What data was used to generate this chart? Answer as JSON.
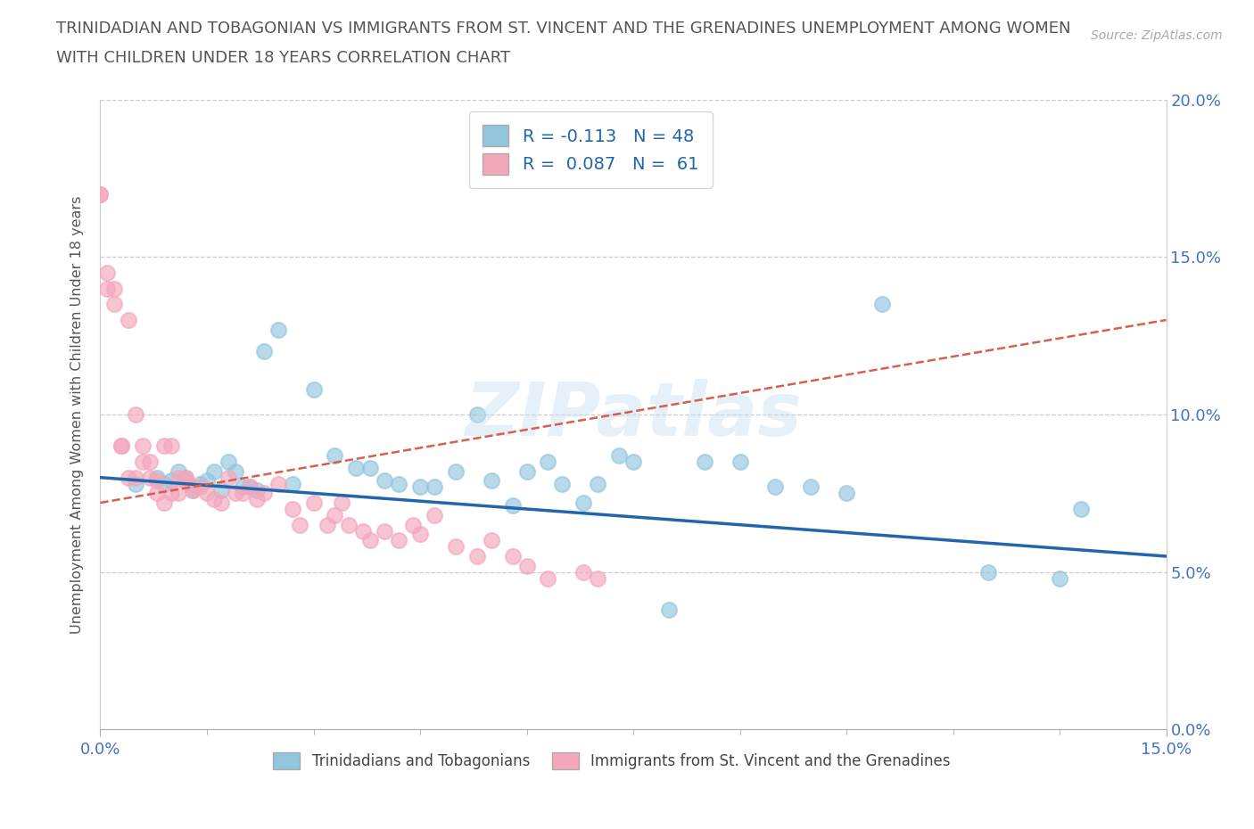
{
  "title_line1": "TRINIDADIAN AND TOBAGONIAN VS IMMIGRANTS FROM ST. VINCENT AND THE GRENADINES UNEMPLOYMENT AMONG WOMEN",
  "title_line2": "WITH CHILDREN UNDER 18 YEARS CORRELATION CHART",
  "source_text": "Source: ZipAtlas.com",
  "ylabel": "Unemployment Among Women with Children Under 18 years",
  "xlim": [
    0.0,
    0.15
  ],
  "ylim": [
    0.0,
    0.2
  ],
  "xticks_major": [
    0.0,
    0.15
  ],
  "xticks_minor": [
    0.0,
    0.015,
    0.03,
    0.045,
    0.06,
    0.075,
    0.09,
    0.105,
    0.12,
    0.135,
    0.15
  ],
  "yticks": [
    0.0,
    0.05,
    0.1,
    0.15,
    0.2
  ],
  "xtick_labels_major": [
    "0.0%",
    "15.0%"
  ],
  "ytick_labels_right": [
    "0.0%",
    "5.0%",
    "10.0%",
    "15.0%",
    "20.0%"
  ],
  "R_blue": -0.113,
  "N_blue": 48,
  "R_pink": 0.087,
  "N_pink": 61,
  "blue_color": "#92c5de",
  "pink_color": "#f4a6bb",
  "blue_line_color": "#2166ac",
  "pink_line_color": "#d6604d",
  "legend_label_blue": "Trinidadians and Tobagonians",
  "legend_label_pink": "Immigrants from St. Vincent and the Grenadines",
  "watermark": "ZIPatlas",
  "blue_x": [
    0.005,
    0.008,
    0.009,
    0.01,
    0.011,
    0.012,
    0.013,
    0.014,
    0.015,
    0.016,
    0.017,
    0.018,
    0.019,
    0.02,
    0.021,
    0.022,
    0.023,
    0.025,
    0.027,
    0.03,
    0.033,
    0.036,
    0.038,
    0.04,
    0.042,
    0.045,
    0.047,
    0.05,
    0.053,
    0.055,
    0.058,
    0.06,
    0.063,
    0.065,
    0.068,
    0.07,
    0.073,
    0.075,
    0.08,
    0.085,
    0.09,
    0.095,
    0.1,
    0.105,
    0.11,
    0.125,
    0.135,
    0.138
  ],
  "blue_y": [
    0.078,
    0.08,
    0.078,
    0.079,
    0.082,
    0.08,
    0.076,
    0.078,
    0.079,
    0.082,
    0.076,
    0.085,
    0.082,
    0.077,
    0.077,
    0.076,
    0.12,
    0.127,
    0.078,
    0.108,
    0.087,
    0.083,
    0.083,
    0.079,
    0.078,
    0.077,
    0.077,
    0.082,
    0.1,
    0.079,
    0.071,
    0.082,
    0.085,
    0.078,
    0.072,
    0.078,
    0.087,
    0.085,
    0.038,
    0.085,
    0.085,
    0.077,
    0.077,
    0.075,
    0.135,
    0.05,
    0.048,
    0.07
  ],
  "pink_x": [
    0.0,
    0.0,
    0.001,
    0.001,
    0.002,
    0.002,
    0.003,
    0.003,
    0.004,
    0.004,
    0.005,
    0.005,
    0.006,
    0.006,
    0.007,
    0.007,
    0.008,
    0.008,
    0.009,
    0.009,
    0.01,
    0.01,
    0.011,
    0.011,
    0.012,
    0.012,
    0.013,
    0.013,
    0.014,
    0.015,
    0.016,
    0.017,
    0.018,
    0.019,
    0.02,
    0.021,
    0.022,
    0.023,
    0.025,
    0.027,
    0.028,
    0.03,
    0.032,
    0.033,
    0.034,
    0.035,
    0.037,
    0.038,
    0.04,
    0.042,
    0.044,
    0.045,
    0.047,
    0.05,
    0.053,
    0.055,
    0.058,
    0.06,
    0.063,
    0.068,
    0.07
  ],
  "pink_y": [
    0.17,
    0.17,
    0.14,
    0.145,
    0.14,
    0.135,
    0.09,
    0.09,
    0.13,
    0.08,
    0.08,
    0.1,
    0.09,
    0.085,
    0.08,
    0.085,
    0.075,
    0.079,
    0.09,
    0.072,
    0.09,
    0.075,
    0.075,
    0.08,
    0.08,
    0.079,
    0.076,
    0.077,
    0.077,
    0.075,
    0.073,
    0.072,
    0.08,
    0.075,
    0.075,
    0.077,
    0.073,
    0.075,
    0.078,
    0.07,
    0.065,
    0.072,
    0.065,
    0.068,
    0.072,
    0.065,
    0.063,
    0.06,
    0.063,
    0.06,
    0.065,
    0.062,
    0.068,
    0.058,
    0.055,
    0.06,
    0.055,
    0.052,
    0.048,
    0.05,
    0.048
  ],
  "trendline_blue_y0": 0.08,
  "trendline_blue_y1": 0.055,
  "trendline_pink_y0": 0.072,
  "trendline_pink_y1": 0.13
}
